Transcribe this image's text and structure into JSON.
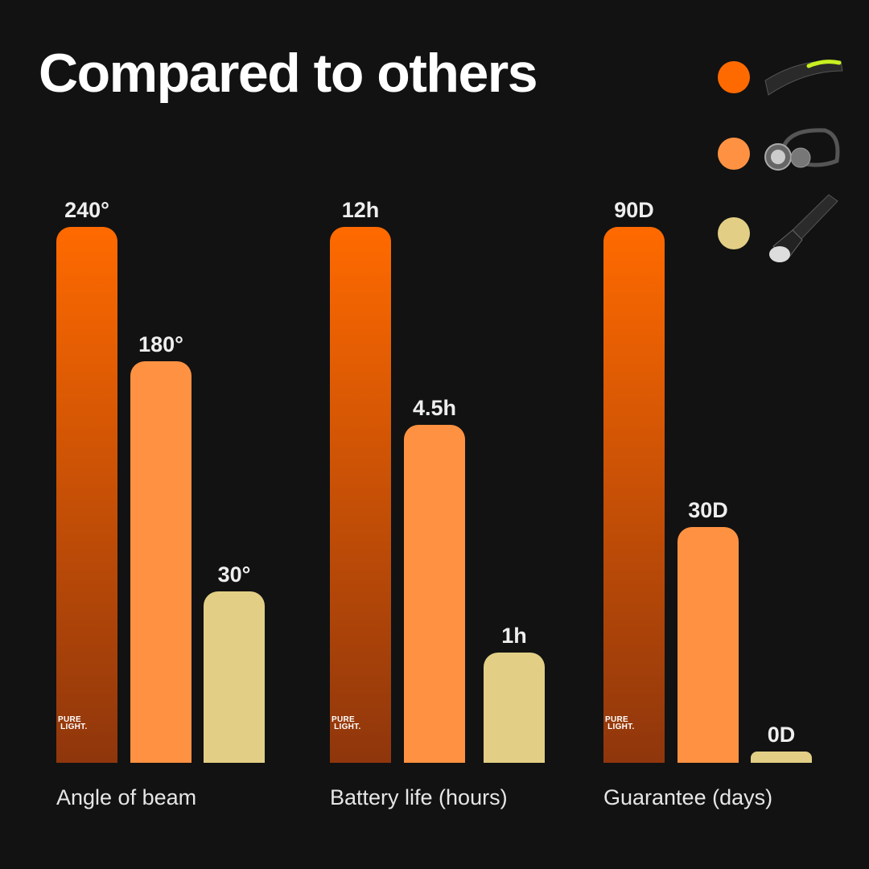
{
  "chart_data": {
    "type": "bar",
    "title": "Compared to others",
    "categories": [
      "Angle of beam",
      "Battery life (hours)",
      "Guarantee (days)"
    ],
    "series": [
      {
        "values": [
          240,
          12,
          90
        ],
        "labels": [
          "240°",
          "12h",
          "90D"
        ],
        "color": "#ff6a00",
        "gradient_to": "#8f360c",
        "legend_icon": "led-strip-headlamp-icon",
        "logo": "PURE LIGHT."
      },
      {
        "values": [
          180,
          4.5,
          30
        ],
        "labels": [
          "180°",
          "4.5h",
          "30D"
        ],
        "color": "#ff9242",
        "legend_icon": "classic-headlamp-icon"
      },
      {
        "values": [
          30,
          1,
          0
        ],
        "labels": [
          "30°",
          "1h",
          "0D"
        ],
        "color": "#e2cf85",
        "legend_icon": "flashlight-icon"
      }
    ],
    "legend": "top-right",
    "grid": false
  }
}
